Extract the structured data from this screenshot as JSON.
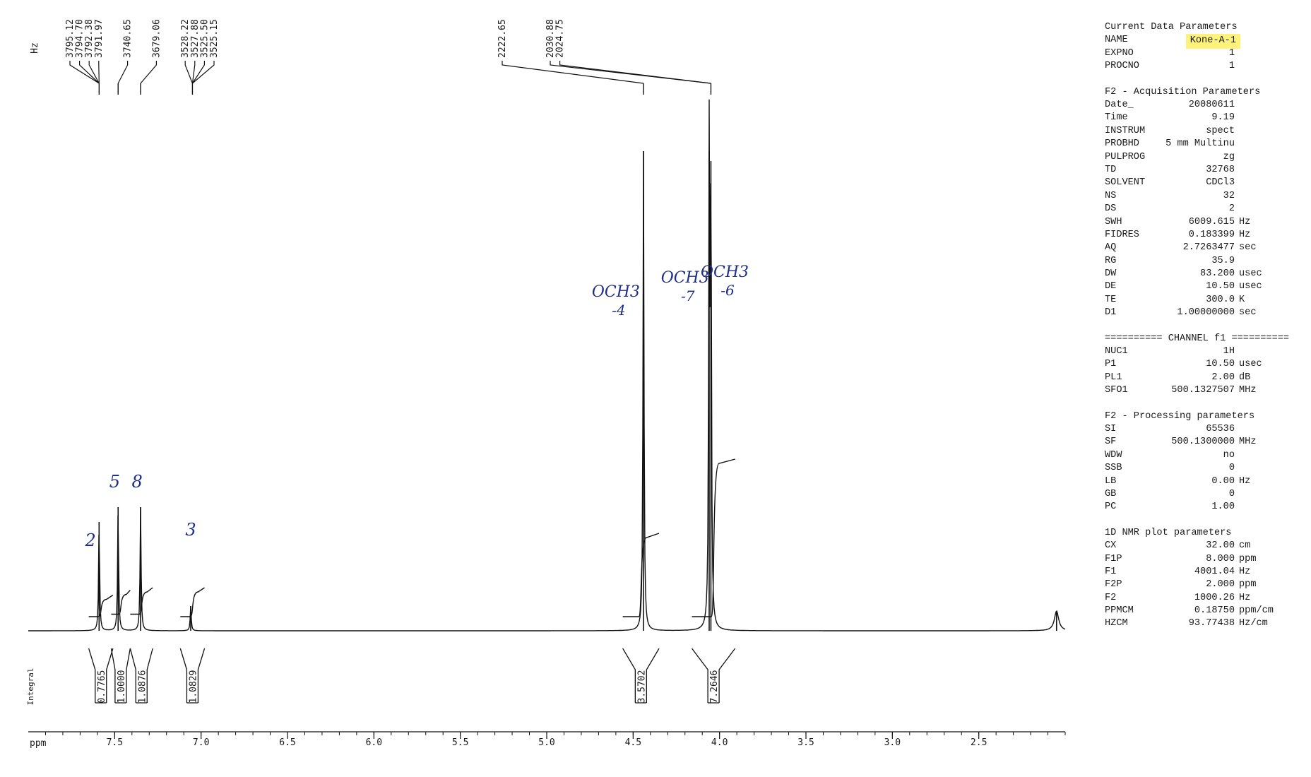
{
  "chart_data": {
    "type": "line",
    "title": "",
    "xlabel": "ppm",
    "ylabel": "",
    "xlim": [
      8.0,
      2.0
    ],
    "x_ticks": [
      "7.5",
      "7.0",
      "6.5",
      "6.0",
      "5.5",
      "5.0",
      "4.5",
      "4.0",
      "3.5",
      "3.0",
      "2.5"
    ],
    "hz_axis_label": "Hz",
    "integral_axis_label": "Integral",
    "peaks": [
      {
        "ppm": 7.59,
        "rel_height": 0.22
      },
      {
        "ppm": 7.48,
        "rel_height": 0.25
      },
      {
        "ppm": 7.35,
        "rel_height": 0.25
      },
      {
        "ppm": 7.06,
        "rel_height": 0.05
      },
      {
        "ppm": 4.44,
        "rel_height": 0.97
      },
      {
        "ppm": 4.06,
        "rel_height": 0.97
      },
      {
        "ppm": 4.05,
        "rel_height": 0.95
      },
      {
        "ppm": 2.05,
        "rel_height": 0.04
      }
    ],
    "peak_labels": [
      {
        "group": 1,
        "target_ppm": 7.59,
        "labels": [
          "3795.12",
          "3794.70",
          "3792.38",
          "3791.97"
        ]
      },
      {
        "group": 2,
        "target_ppm": 7.48,
        "labels": [
          "3740.65"
        ]
      },
      {
        "group": 3,
        "target_ppm": 7.35,
        "labels": [
          "3679.06"
        ]
      },
      {
        "group": 4,
        "target_ppm": 7.05,
        "labels": [
          "3528.22",
          "3527.88",
          "3525.50",
          "3525.15"
        ]
      },
      {
        "group": 5,
        "target_ppm": 4.44,
        "labels": [
          "2222.65"
        ]
      },
      {
        "group": 6,
        "target_ppm": 4.05,
        "labels": [
          "2030.88",
          "2024.75"
        ]
      }
    ],
    "integrals": [
      {
        "from_ppm": 7.65,
        "to_ppm": 7.51,
        "value": "0.7765",
        "curve_start": 0.0,
        "curve_end": 0.035
      },
      {
        "from_ppm": 7.52,
        "to_ppm": 7.41,
        "value": "1.0000",
        "curve_start": 0.005,
        "curve_end": 0.045
      },
      {
        "from_ppm": 7.41,
        "to_ppm": 7.28,
        "value": "1.0876",
        "curve_start": 0.005,
        "curve_end": 0.05
      },
      {
        "from_ppm": 7.12,
        "to_ppm": 6.98,
        "value": "1.0829",
        "curve_start": 0.0,
        "curve_end": 0.05
      },
      {
        "from_ppm": 4.56,
        "to_ppm": 4.35,
        "value": "3.5702",
        "curve_start": 0.0,
        "curve_end": 0.16
      },
      {
        "from_ppm": 4.16,
        "to_ppm": 3.91,
        "value": "7.2646",
        "curve_start": 0.0,
        "curve_end": 0.31
      }
    ],
    "annotations": [
      {
        "text": "2",
        "ppm": 7.64
      },
      {
        "text": "5",
        "ppm": 7.5
      },
      {
        "text": "8",
        "ppm": 7.37
      },
      {
        "text": "3",
        "ppm": 7.06
      },
      {
        "text": "OCH3",
        "ppm": 4.6,
        "sub": "-4"
      },
      {
        "text": "OCH3",
        "ppm": 4.2,
        "sub": "-7"
      },
      {
        "text": "OCH3",
        "ppm": 3.97,
        "sub": "-6"
      }
    ],
    "grid": false,
    "legend": "none"
  },
  "params": {
    "current": {
      "title": "Current Data Parameters",
      "rows": [
        {
          "k": "NAME",
          "v": "Kone-A-1",
          "u": "",
          "highlight": "#fff27a"
        },
        {
          "k": "EXPNO",
          "v": "1",
          "u": ""
        },
        {
          "k": "PROCNO",
          "v": "1",
          "u": ""
        }
      ]
    },
    "acquisition": {
      "title": "F2 - Acquisition Parameters",
      "rows": [
        {
          "k": "Date_",
          "v": "20080611",
          "u": ""
        },
        {
          "k": "Time",
          "v": "9.19",
          "u": ""
        },
        {
          "k": "INSTRUM",
          "v": "spect",
          "u": ""
        },
        {
          "k": "PROBHD",
          "v": "5 mm Multinu",
          "u": ""
        },
        {
          "k": "PULPROG",
          "v": "zg",
          "u": ""
        },
        {
          "k": "TD",
          "v": "32768",
          "u": ""
        },
        {
          "k": "SOLVENT",
          "v": "CDCl3",
          "u": ""
        },
        {
          "k": "NS",
          "v": "32",
          "u": ""
        },
        {
          "k": "DS",
          "v": "2",
          "u": ""
        },
        {
          "k": "SWH",
          "v": "6009.615",
          "u": "Hz"
        },
        {
          "k": "FIDRES",
          "v": "0.183399",
          "u": "Hz"
        },
        {
          "k": "AQ",
          "v": "2.7263477",
          "u": "sec"
        },
        {
          "k": "RG",
          "v": "35.9",
          "u": ""
        },
        {
          "k": "DW",
          "v": "83.200",
          "u": "usec"
        },
        {
          "k": "DE",
          "v": "10.50",
          "u": "usec"
        },
        {
          "k": "TE",
          "v": "300.0",
          "u": "K"
        },
        {
          "k": "D1",
          "v": "1.00000000",
          "u": "sec"
        }
      ]
    },
    "channel": {
      "title": "========== CHANNEL f1 ==========",
      "rows": [
        {
          "k": "NUC1",
          "v": "1H",
          "u": ""
        },
        {
          "k": "P1",
          "v": "10.50",
          "u": "usec"
        },
        {
          "k": "PL1",
          "v": "2.00",
          "u": "dB"
        },
        {
          "k": "SFO1",
          "v": "500.1327507",
          "u": "MHz"
        }
      ]
    },
    "processing": {
      "title": "F2 - Processing parameters",
      "rows": [
        {
          "k": "SI",
          "v": "65536",
          "u": ""
        },
        {
          "k": "SF",
          "v": "500.1300000",
          "u": "MHz"
        },
        {
          "k": "WDW",
          "v": "no",
          "u": ""
        },
        {
          "k": "SSB",
          "v": "0",
          "u": ""
        },
        {
          "k": "LB",
          "v": "0.00",
          "u": "Hz"
        },
        {
          "k": "GB",
          "v": "0",
          "u": ""
        },
        {
          "k": "PC",
          "v": "1.00",
          "u": ""
        }
      ]
    },
    "plot": {
      "title": "1D NMR plot parameters",
      "rows": [
        {
          "k": "CX",
          "v": "32.00",
          "u": "cm"
        },
        {
          "k": "F1P",
          "v": "8.000",
          "u": "ppm"
        },
        {
          "k": "F1",
          "v": "4001.04",
          "u": "Hz"
        },
        {
          "k": "F2P",
          "v": "2.000",
          "u": "ppm"
        },
        {
          "k": "F2",
          "v": "1000.26",
          "u": "Hz"
        },
        {
          "k": "PPMCM",
          "v": "0.18750",
          "u": "ppm/cm"
        },
        {
          "k": "HZCM",
          "v": "93.77438",
          "u": "Hz/cm"
        }
      ]
    }
  }
}
